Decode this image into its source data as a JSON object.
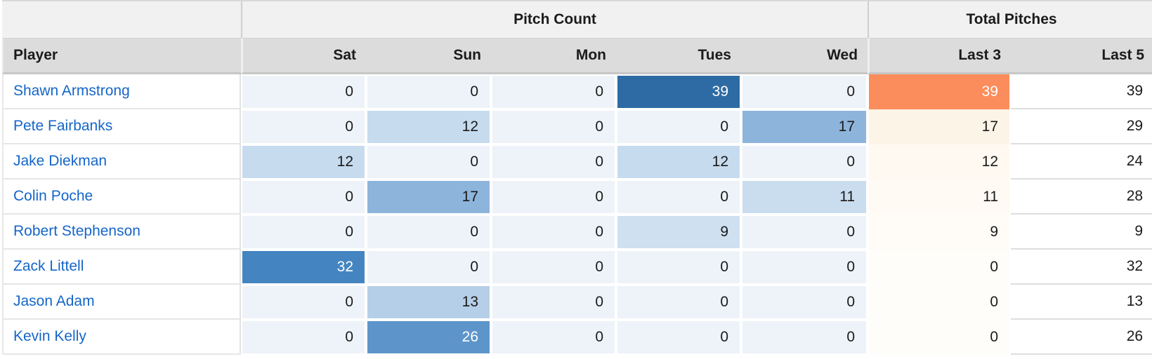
{
  "title_groups": {
    "pitch_count": "Pitch Count",
    "total_pitches": "Total Pitches"
  },
  "columns": [
    "Player",
    "Sat",
    "Sun",
    "Mon",
    "Tues",
    "Wed",
    "Last 3",
    "Last 5"
  ],
  "colors": {
    "zero_cell_bg": "#eef3f9",
    "blue_max": "#2e6ba4",
    "orange_max": "#fb8d5c",
    "player_link": "#1566c8",
    "header_group_bg": "#f1f1f1",
    "header_col_bg": "#dcdcdc"
  },
  "rows": [
    {
      "player": "Shawn Armstrong",
      "days": [
        {
          "v": "0",
          "bg": "#eef3f9",
          "fg": "#1a1a1a"
        },
        {
          "v": "0",
          "bg": "#eef3f9",
          "fg": "#1a1a1a"
        },
        {
          "v": "0",
          "bg": "#eef3f9",
          "fg": "#1a1a1a"
        },
        {
          "v": "39",
          "bg": "#2e6ba4",
          "fg": "#ffffff"
        },
        {
          "v": "0",
          "bg": "#eef3f9",
          "fg": "#1a1a1a"
        }
      ],
      "last3": {
        "v": "39",
        "bg": "#fb8d5c",
        "fg": "#ffffff"
      },
      "last5": {
        "v": "39"
      }
    },
    {
      "player": "Pete Fairbanks",
      "days": [
        {
          "v": "0",
          "bg": "#eef3f9",
          "fg": "#1a1a1a"
        },
        {
          "v": "12",
          "bg": "#c6dbee",
          "fg": "#1a1a1a"
        },
        {
          "v": "0",
          "bg": "#eef3f9",
          "fg": "#1a1a1a"
        },
        {
          "v": "0",
          "bg": "#eef3f9",
          "fg": "#1a1a1a"
        },
        {
          "v": "17",
          "bg": "#8db4db",
          "fg": "#1a1a1a"
        }
      ],
      "last3": {
        "v": "17",
        "bg": "#fdf4e8",
        "fg": "#1a1a1a"
      },
      "last5": {
        "v": "29"
      }
    },
    {
      "player": "Jake Diekman",
      "days": [
        {
          "v": "12",
          "bg": "#c6dbee",
          "fg": "#1a1a1a"
        },
        {
          "v": "0",
          "bg": "#eef3f9",
          "fg": "#1a1a1a"
        },
        {
          "v": "0",
          "bg": "#eef3f9",
          "fg": "#1a1a1a"
        },
        {
          "v": "12",
          "bg": "#c6dbee",
          "fg": "#1a1a1a"
        },
        {
          "v": "0",
          "bg": "#eef3f9",
          "fg": "#1a1a1a"
        }
      ],
      "last3": {
        "v": "12",
        "bg": "#fff9f1",
        "fg": "#1a1a1a"
      },
      "last5": {
        "v": "24"
      }
    },
    {
      "player": "Colin Poche",
      "days": [
        {
          "v": "0",
          "bg": "#eef3f9",
          "fg": "#1a1a1a"
        },
        {
          "v": "17",
          "bg": "#8db4db",
          "fg": "#1a1a1a"
        },
        {
          "v": "0",
          "bg": "#eef3f9",
          "fg": "#1a1a1a"
        },
        {
          "v": "0",
          "bg": "#eef3f9",
          "fg": "#1a1a1a"
        },
        {
          "v": "11",
          "bg": "#c9ddef",
          "fg": "#1a1a1a"
        }
      ],
      "last3": {
        "v": "11",
        "bg": "#fffaf3",
        "fg": "#1a1a1a"
      },
      "last5": {
        "v": "28"
      }
    },
    {
      "player": "Robert Stephenson",
      "days": [
        {
          "v": "0",
          "bg": "#eef3f9",
          "fg": "#1a1a1a"
        },
        {
          "v": "0",
          "bg": "#eef3f9",
          "fg": "#1a1a1a"
        },
        {
          "v": "0",
          "bg": "#eef3f9",
          "fg": "#1a1a1a"
        },
        {
          "v": "9",
          "bg": "#cfe0f0",
          "fg": "#1a1a1a"
        },
        {
          "v": "0",
          "bg": "#eef3f9",
          "fg": "#1a1a1a"
        }
      ],
      "last3": {
        "v": "9",
        "bg": "#fffcf7",
        "fg": "#1a1a1a"
      },
      "last5": {
        "v": "9"
      }
    },
    {
      "player": "Zack Littell",
      "days": [
        {
          "v": "32",
          "bg": "#4485c1",
          "fg": "#ffffff"
        },
        {
          "v": "0",
          "bg": "#eef3f9",
          "fg": "#1a1a1a"
        },
        {
          "v": "0",
          "bg": "#eef3f9",
          "fg": "#1a1a1a"
        },
        {
          "v": "0",
          "bg": "#eef3f9",
          "fg": "#1a1a1a"
        },
        {
          "v": "0",
          "bg": "#eef3f9",
          "fg": "#1a1a1a"
        }
      ],
      "last3": {
        "v": "0",
        "bg": "#fffdfa",
        "fg": "#1a1a1a"
      },
      "last5": {
        "v": "32"
      }
    },
    {
      "player": "Jason Adam",
      "days": [
        {
          "v": "0",
          "bg": "#eef3f9",
          "fg": "#1a1a1a"
        },
        {
          "v": "13",
          "bg": "#b6cfe8",
          "fg": "#1a1a1a"
        },
        {
          "v": "0",
          "bg": "#eef3f9",
          "fg": "#1a1a1a"
        },
        {
          "v": "0",
          "bg": "#eef3f9",
          "fg": "#1a1a1a"
        },
        {
          "v": "0",
          "bg": "#eef3f9",
          "fg": "#1a1a1a"
        }
      ],
      "last3": {
        "v": "0",
        "bg": "#fffdfa",
        "fg": "#1a1a1a"
      },
      "last5": {
        "v": "13"
      }
    },
    {
      "player": "Kevin Kelly",
      "days": [
        {
          "v": "0",
          "bg": "#eef3f9",
          "fg": "#1a1a1a"
        },
        {
          "v": "26",
          "bg": "#5d95ca",
          "fg": "#ffffff"
        },
        {
          "v": "0",
          "bg": "#eef3f9",
          "fg": "#1a1a1a"
        },
        {
          "v": "0",
          "bg": "#eef3f9",
          "fg": "#1a1a1a"
        },
        {
          "v": "0",
          "bg": "#eef3f9",
          "fg": "#1a1a1a"
        }
      ],
      "last3": {
        "v": "0",
        "bg": "#fffdfa",
        "fg": "#1a1a1a"
      },
      "last5": {
        "v": "26"
      }
    }
  ]
}
